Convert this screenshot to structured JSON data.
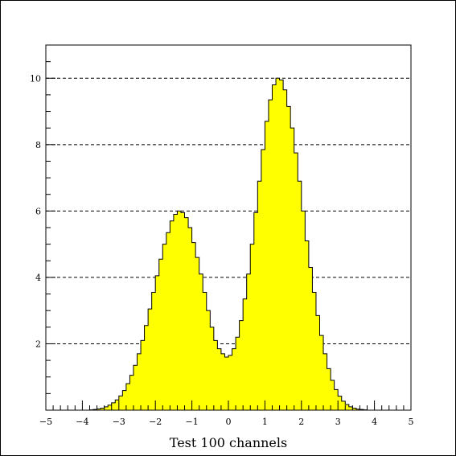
{
  "chart_data": {
    "type": "histogram",
    "xlabel": "Test 100 channels",
    "ylabel": "",
    "title": "",
    "xlim": [
      -5,
      5
    ],
    "ylim": [
      0,
      11
    ],
    "nbins": 100,
    "bin_width": 0.1,
    "x_ticks": [
      -5,
      -4,
      -3,
      -2,
      -1,
      0,
      1,
      2,
      3,
      4,
      5
    ],
    "x_tick_labels": [
      "−5",
      "−4",
      "−3",
      "−2",
      "−1",
      "0",
      "1",
      "2",
      "3",
      "4",
      "5"
    ],
    "y_ticks": [
      2,
      4,
      6,
      8,
      10
    ],
    "y_tick_labels": [
      "2",
      "4",
      "6",
      "8",
      "10"
    ],
    "grid": {
      "y": true,
      "x": false,
      "style": "dashed"
    },
    "fill_color": "#ffff00",
    "line_color": "#000000",
    "bin_centers": [
      -4.95,
      -4.85,
      -4.75,
      -4.65,
      -4.55,
      -4.45,
      -4.35,
      -4.25,
      -4.15,
      -4.05,
      -3.95,
      -3.85,
      -3.75,
      -3.65,
      -3.55,
      -3.45,
      -3.35,
      -3.25,
      -3.15,
      -3.05,
      -2.95,
      -2.85,
      -2.75,
      -2.65,
      -2.55,
      -2.45,
      -2.35,
      -2.25,
      -2.15,
      -2.05,
      -1.95,
      -1.85,
      -1.75,
      -1.65,
      -1.55,
      -1.45,
      -1.35,
      -1.25,
      -1.15,
      -1.05,
      -0.95,
      -0.85,
      -0.75,
      -0.65,
      -0.55,
      -0.45,
      -0.35,
      -0.25,
      -0.15,
      -0.05,
      0.05,
      0.15,
      0.25,
      0.35,
      0.45,
      0.55,
      0.65,
      0.75,
      0.85,
      0.95,
      1.05,
      1.15,
      1.25,
      1.35,
      1.45,
      1.55,
      1.65,
      1.75,
      1.85,
      1.95,
      2.05,
      2.15,
      2.25,
      2.35,
      2.45,
      2.55,
      2.65,
      2.75,
      2.85,
      2.95,
      3.05,
      3.15,
      3.25,
      3.35,
      3.45,
      3.55,
      3.65,
      3.75,
      3.85,
      3.95,
      4.05,
      4.15,
      4.25,
      4.35,
      4.45,
      4.55,
      4.65,
      4.75,
      4.85,
      4.95
    ],
    "values": [
      0.0,
      0.0,
      0.0,
      0.0,
      0.0,
      0.0,
      0.0,
      0.0,
      0.0,
      0.0,
      0.0,
      0.0,
      0.01,
      0.02,
      0.04,
      0.06,
      0.1,
      0.15,
      0.22,
      0.31,
      0.43,
      0.59,
      0.8,
      1.05,
      1.35,
      1.7,
      2.1,
      2.55,
      3.05,
      3.55,
      4.05,
      4.55,
      5.0,
      5.35,
      5.7,
      5.9,
      6.0,
      5.95,
      5.8,
      5.5,
      5.05,
      4.6,
      4.1,
      3.55,
      3.0,
      2.5,
      2.1,
      1.85,
      1.7,
      1.6,
      1.65,
      1.85,
      2.2,
      2.7,
      3.35,
      4.1,
      5.0,
      5.95,
      6.9,
      7.85,
      8.7,
      9.35,
      9.8,
      10.0,
      9.95,
      9.65,
      9.15,
      8.5,
      7.75,
      6.9,
      6.0,
      5.1,
      4.3,
      3.55,
      2.85,
      2.25,
      1.7,
      1.25,
      0.9,
      0.62,
      0.42,
      0.27,
      0.17,
      0.1,
      0.06,
      0.03,
      0.02,
      0.01,
      0.0,
      0.0,
      0.0,
      0.0,
      0.0,
      0.0,
      0.0,
      0.0,
      0.0,
      0.0,
      0.0,
      0.0
    ]
  }
}
